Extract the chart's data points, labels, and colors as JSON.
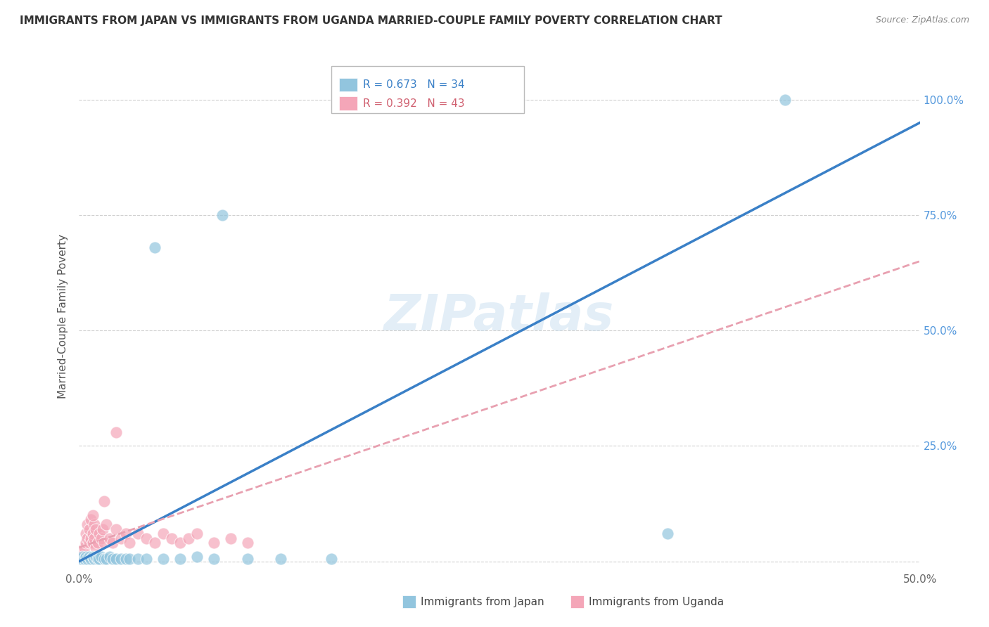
{
  "title": "IMMIGRANTS FROM JAPAN VS IMMIGRANTS FROM UGANDA MARRIED-COUPLE FAMILY POVERTY CORRELATION CHART",
  "source": "Source: ZipAtlas.com",
  "ylabel": "Married-Couple Family Poverty",
  "xlim": [
    0.0,
    0.5
  ],
  "ylim": [
    -0.02,
    1.08
  ],
  "xtick_positions": [
    0.0,
    0.1,
    0.2,
    0.3,
    0.4,
    0.5
  ],
  "xtick_labels": [
    "0.0%",
    "",
    "",
    "",
    "",
    "50.0%"
  ],
  "ytick_positions": [
    0.0,
    0.25,
    0.5,
    0.75,
    1.0
  ],
  "ytick_labels": [
    "",
    "25.0%",
    "50.0%",
    "75.0%",
    "100.0%"
  ],
  "japan_R": 0.673,
  "japan_N": 34,
  "uganda_R": 0.392,
  "uganda_N": 43,
  "japan_color": "#92c5de",
  "uganda_color": "#f4a6b8",
  "japan_line_color": "#3a80c7",
  "uganda_line_color": "#e8a0b0",
  "japan_line_x": [
    0.0,
    0.5
  ],
  "japan_line_y": [
    0.0,
    0.95
  ],
  "uganda_line_x": [
    0.0,
    0.5
  ],
  "uganda_line_y": [
    0.03,
    0.65
  ],
  "watermark": "ZIPatlas",
  "background_color": "#ffffff",
  "grid_color": "#d0d0d0",
  "ytick_color": "#5599dd",
  "japan_x": [
    0.001,
    0.002,
    0.003,
    0.004,
    0.005,
    0.006,
    0.007,
    0.008,
    0.009,
    0.01,
    0.011,
    0.012,
    0.013,
    0.015,
    0.016,
    0.018,
    0.02,
    0.022,
    0.025,
    0.028,
    0.03,
    0.035,
    0.04,
    0.05,
    0.06,
    0.07,
    0.08,
    0.1,
    0.12,
    0.15,
    0.35,
    0.085,
    0.045,
    0.42
  ],
  "japan_y": [
    0.005,
    0.01,
    0.005,
    0.01,
    0.005,
    0.01,
    0.005,
    0.01,
    0.005,
    0.01,
    0.005,
    0.005,
    0.01,
    0.005,
    0.005,
    0.01,
    0.005,
    0.005,
    0.005,
    0.005,
    0.005,
    0.005,
    0.005,
    0.005,
    0.005,
    0.01,
    0.005,
    0.005,
    0.005,
    0.005,
    0.06,
    0.75,
    0.68,
    1.0
  ],
  "uganda_x": [
    0.001,
    0.002,
    0.003,
    0.004,
    0.004,
    0.005,
    0.005,
    0.006,
    0.006,
    0.007,
    0.007,
    0.008,
    0.008,
    0.009,
    0.009,
    0.01,
    0.01,
    0.011,
    0.012,
    0.013,
    0.014,
    0.015,
    0.016,
    0.018,
    0.02,
    0.022,
    0.025,
    0.028,
    0.03,
    0.035,
    0.04,
    0.045,
    0.05,
    0.055,
    0.06,
    0.065,
    0.07,
    0.08,
    0.09,
    0.1,
    0.022,
    0.015,
    0.008
  ],
  "uganda_y": [
    0.01,
    0.02,
    0.03,
    0.04,
    0.06,
    0.05,
    0.08,
    0.04,
    0.07,
    0.05,
    0.09,
    0.04,
    0.06,
    0.05,
    0.08,
    0.03,
    0.07,
    0.04,
    0.06,
    0.05,
    0.07,
    0.04,
    0.08,
    0.05,
    0.04,
    0.07,
    0.05,
    0.06,
    0.04,
    0.06,
    0.05,
    0.04,
    0.06,
    0.05,
    0.04,
    0.05,
    0.06,
    0.04,
    0.05,
    0.04,
    0.28,
    0.13,
    0.1
  ]
}
